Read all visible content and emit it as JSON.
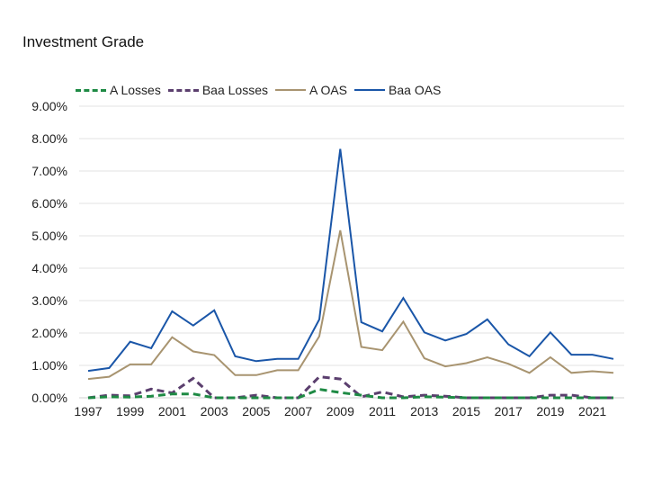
{
  "chart_data": {
    "type": "line",
    "title": "Investment Grade",
    "xlabel": "",
    "ylabel": "",
    "x": [
      1997,
      1998,
      1999,
      2000,
      2001,
      2002,
      2003,
      2004,
      2005,
      2006,
      2007,
      2008,
      2009,
      2010,
      2011,
      2012,
      2013,
      2014,
      2015,
      2016,
      2017,
      2018,
      2019,
      2020,
      2021,
      2022
    ],
    "ylim": [
      0,
      9
    ],
    "yticks": [
      "0.00%",
      "1.00%",
      "2.00%",
      "3.00%",
      "4.00%",
      "5.00%",
      "6.00%",
      "7.00%",
      "8.00%",
      "9.00%"
    ],
    "xticks": [
      "1997",
      "1999",
      "2001",
      "2003",
      "2005",
      "2007",
      "2009",
      "2011",
      "2013",
      "2015",
      "2017",
      "2019",
      "2021"
    ],
    "grid": true,
    "legend_position": "top",
    "series": [
      {
        "name": "A Losses",
        "color": "#1e8a44",
        "style": "dashed",
        "values": [
          0.0,
          0.03,
          0.02,
          0.05,
          0.12,
          0.12,
          0.0,
          0.0,
          0.0,
          0.0,
          0.0,
          0.26,
          0.16,
          0.08,
          0.0,
          0.0,
          0.03,
          0.02,
          0.0,
          0.0,
          0.0,
          0.0,
          0.0,
          0.0,
          0.0,
          0.0
        ]
      },
      {
        "name": "Baa Losses",
        "color": "#5b3f6e",
        "style": "dashed",
        "values": [
          0.0,
          0.08,
          0.06,
          0.27,
          0.15,
          0.6,
          0.0,
          0.0,
          0.08,
          0.0,
          0.0,
          0.65,
          0.58,
          0.03,
          0.18,
          0.03,
          0.08,
          0.05,
          0.0,
          0.0,
          0.0,
          0.0,
          0.08,
          0.08,
          0.0,
          0.0
        ]
      },
      {
        "name": "A OAS",
        "color": "#a89470",
        "style": "solid",
        "values": [
          0.58,
          0.65,
          1.03,
          1.03,
          1.87,
          1.43,
          1.32,
          0.7,
          0.7,
          0.85,
          0.85,
          1.9,
          5.17,
          1.57,
          1.47,
          2.35,
          1.22,
          0.97,
          1.07,
          1.25,
          1.05,
          0.77,
          1.25,
          0.77,
          0.82,
          0.77
        ]
      },
      {
        "name": "Baa OAS",
        "color": "#1a56a8",
        "style": "solid",
        "values": [
          0.83,
          0.92,
          1.73,
          1.53,
          2.67,
          2.23,
          2.7,
          1.28,
          1.13,
          1.2,
          1.2,
          2.42,
          7.68,
          2.33,
          2.05,
          3.08,
          2.02,
          1.77,
          1.97,
          2.42,
          1.65,
          1.28,
          2.02,
          1.33,
          1.33,
          1.2
        ]
      }
    ]
  }
}
